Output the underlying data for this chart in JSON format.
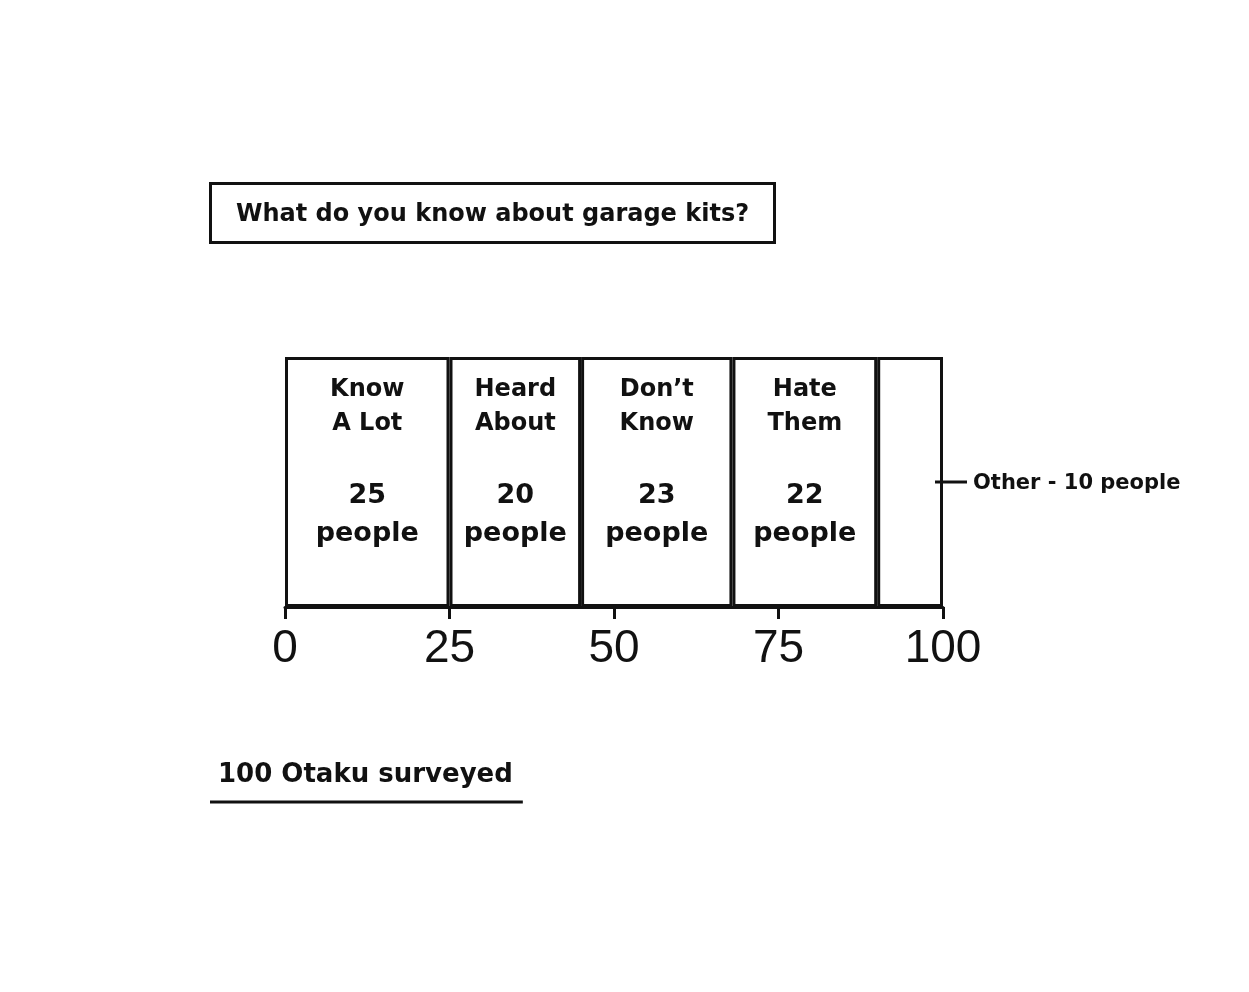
{
  "chart_data": {
    "type": "bar",
    "title": "What do you know about garage kits?",
    "orientation": "horizontal",
    "stacked": true,
    "categories": [
      null
    ],
    "series": [
      {
        "name": "Know A Lot",
        "color": "#ffffff",
        "values": [
          25
        ],
        "value_labels": [
          "25 people"
        ]
      },
      {
        "name": "Heard About",
        "color": "#ffffff",
        "values": [
          20
        ],
        "value_labels": [
          "20 people"
        ]
      },
      {
        "name": "Don’t Know",
        "color": "#ffffff",
        "values": [
          23
        ],
        "value_labels": [
          "23 people"
        ]
      },
      {
        "name": "Hate Them",
        "color": "#ffffff",
        "values": [
          22
        ],
        "value_labels": [
          "22 people"
        ]
      },
      {
        "color": "#ffffff",
        "values": [
          10
        ]
      }
    ],
    "xlim": [
      0,
      100
    ],
    "xticks": [
      0,
      25,
      50,
      75,
      100
    ],
    "grid": false,
    "legend": false,
    "annotations": [
      {
        "text": "Other - 10 people",
        "x": 100
      },
      "100 Otaku surveyed"
    ]
  }
}
